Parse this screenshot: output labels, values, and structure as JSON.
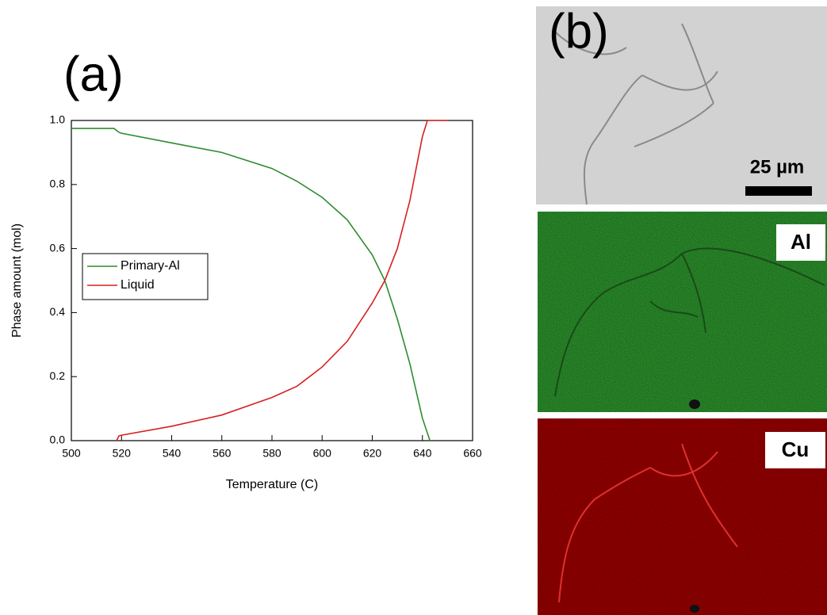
{
  "chart_data": {
    "type": "line",
    "x_label": "Temperature (C)",
    "y_label": "Phase amount (mol)",
    "xlim": [
      500,
      660
    ],
    "xticks": [
      500,
      520,
      540,
      560,
      580,
      600,
      620,
      640,
      660
    ],
    "ylim": [
      0,
      1
    ],
    "yticks": [
      {
        "value": 0,
        "label": "0.0"
      },
      0.2,
      0.4,
      0.6,
      0.8,
      {
        "value": 1,
        "label": "1.0"
      }
    ],
    "legend_loc": "center left",
    "series": [
      {
        "name": "Primary-Al",
        "color": "#2e8b2e",
        "x": [
          500,
          517,
          519,
          520,
          540,
          560,
          580,
          590,
          600,
          610,
          620,
          625,
          630,
          635,
          640,
          643
        ],
        "values": [
          0.975,
          0.975,
          0.963,
          0.96,
          0.93,
          0.9,
          0.85,
          0.81,
          0.76,
          0.69,
          0.58,
          0.5,
          0.38,
          0.24,
          0.07,
          0
        ]
      },
      {
        "name": "Liquid",
        "color": "#d62020",
        "x": [
          518,
          519,
          520,
          540,
          560,
          580,
          590,
          600,
          610,
          620,
          625,
          630,
          635,
          640,
          642,
          650
        ],
        "values": [
          0,
          0.015,
          0.017,
          0.045,
          0.08,
          0.135,
          0.17,
          0.23,
          0.31,
          0.43,
          0.5,
          0.6,
          0.75,
          0.95,
          1,
          1
        ]
      }
    ]
  },
  "figure": {
    "panel_a": "(a)",
    "panel_b": "(b)",
    "scale_bar": "25 µm",
    "maps": [
      "Al",
      "Cu"
    ]
  }
}
